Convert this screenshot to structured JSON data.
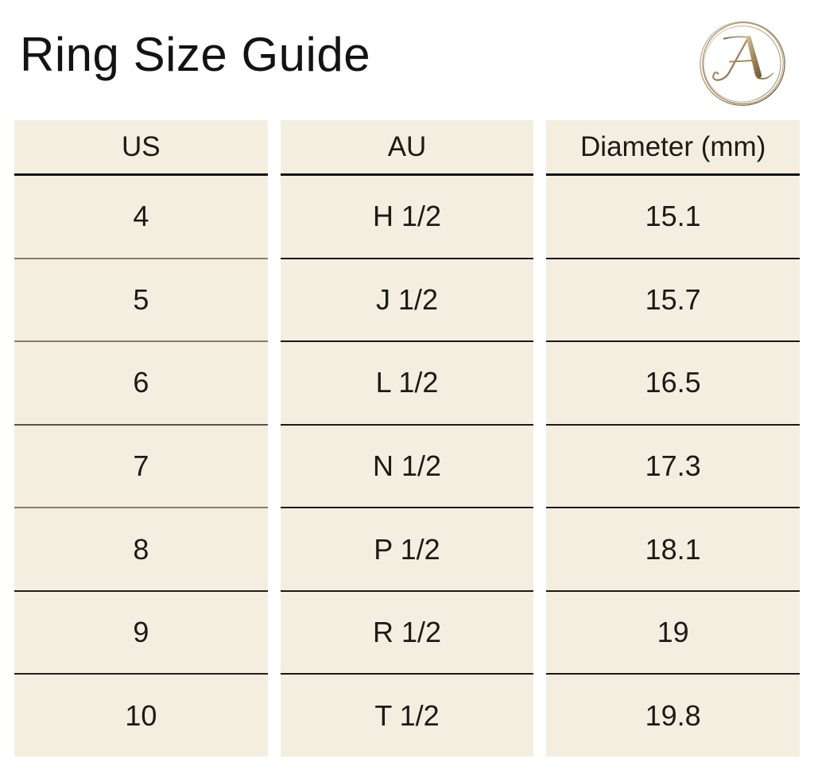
{
  "page": {
    "title": "Ring Size Guide"
  },
  "logo": {
    "monogram_letter": "A",
    "style": "gold-circle-monogram"
  },
  "colors": {
    "column_background": "#f4eee1",
    "header_underline": "#14110d",
    "row_line_black": "#1b1814",
    "row_line_gray": "#857d70",
    "title_text": "#131313",
    "cell_text": "#1d1a15",
    "gold_light": "#d8c49e",
    "gold_mid": "#a3875c",
    "gold_dark": "#6f5632"
  },
  "table": {
    "columns": [
      {
        "header": "US",
        "values": [
          "4",
          "5",
          "6",
          "7",
          "8",
          "9",
          "10"
        ]
      },
      {
        "header": "AU",
        "values": [
          "H 1/2",
          "J 1/2",
          "L 1/2",
          "N 1/2",
          "P 1/2",
          "R 1/2",
          "T 1/2"
        ]
      },
      {
        "header": "Diameter (mm)",
        "values": [
          "15.1",
          "15.7",
          "16.5",
          "17.3",
          "18.1",
          "19",
          "19.8"
        ]
      }
    ],
    "us_row_line_colors": [
      "#857d70",
      "#857d70",
      "#5a5447",
      "#857d70",
      "#23201a",
      "#23201a"
    ]
  }
}
